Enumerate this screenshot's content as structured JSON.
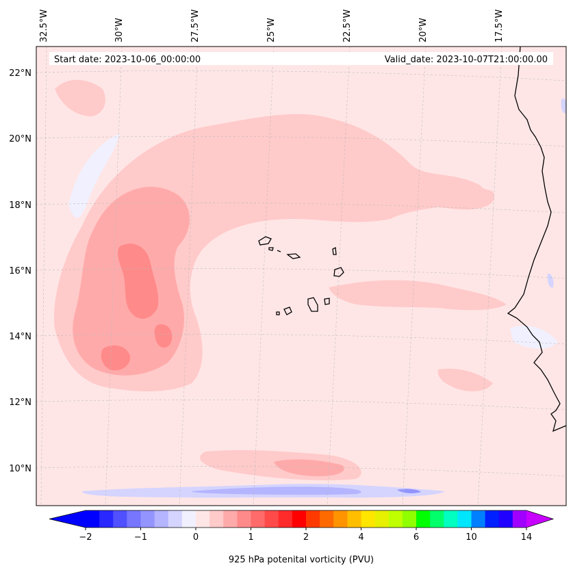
{
  "map": {
    "start_date_text": "Start date: 2023-10-06_00:00:00",
    "valid_date_text": "Valid_date: 2023-10-07T21:00:00.00",
    "lon_labels": [
      "32.5°W",
      "30°W",
      "27.5°W",
      "25°W",
      "22.5°W",
      "20°W",
      "17.5°W"
    ],
    "lat_labels": [
      "22°N",
      "20°N",
      "18°N",
      "16°N",
      "14°N",
      "12°N",
      "10°N"
    ],
    "ocean_color": "#ffe6e6",
    "gridlines": true
  },
  "colorbar": {
    "label": "925 hPa potenital vorticity (PVU)",
    "tick_labels": [
      "−2",
      "−1",
      "0",
      "1",
      "2",
      "4",
      "6",
      "10",
      "14"
    ],
    "extend": "both",
    "colors": [
      "#0000ff",
      "#2828ff",
      "#5050ff",
      "#7676ff",
      "#9494ff",
      "#b4b4ff",
      "#d4d4ff",
      "#f0f0ff",
      "#ffe6e6",
      "#ffcaca",
      "#ffaaaa",
      "#ff8a8a",
      "#ff6a6a",
      "#ff4a4a",
      "#ff2a2a",
      "#ff0000",
      "#ff3a00",
      "#ff6a00",
      "#ff9400",
      "#ffbe00",
      "#ffe600",
      "#e6f000",
      "#c0ff00",
      "#90ff00",
      "#00ff00",
      "#00ff6a",
      "#00ffc0",
      "#00e6ff",
      "#0080ff",
      "#0020ff",
      "#2000ff",
      "#a000ff"
    ],
    "under_color": "#0000ff",
    "over_color": "#c800ff"
  }
}
